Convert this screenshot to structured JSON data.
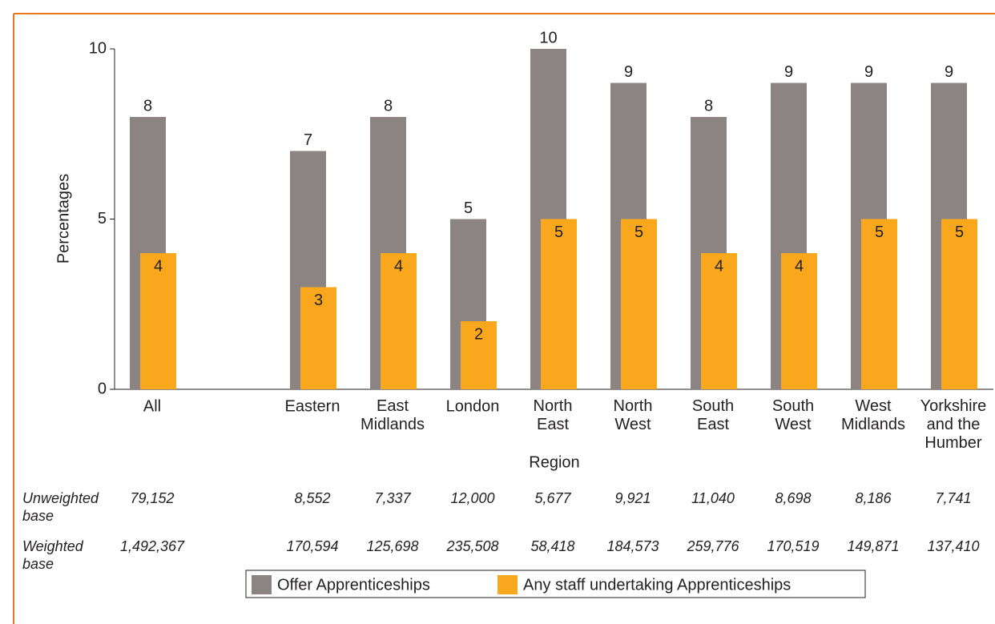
{
  "chart_data": {
    "type": "bar",
    "x_label": "Region",
    "y_label": "Percentages",
    "categories": [
      "All",
      null,
      "Eastern",
      "East\nMidlands",
      "London",
      "North\nEast",
      "North\nWest",
      "South\nEast",
      "South\nWest",
      "West\nMidlands",
      "Yorkshire\nand the\nHumber"
    ],
    "series": [
      {
        "name": "Offer Apprenticeships",
        "color": "#8c8482",
        "values": [
          8,
          null,
          7,
          8,
          5,
          10,
          9,
          8,
          9,
          9,
          9
        ]
      },
      {
        "name": "Any staff undertaking Apprenticeships",
        "color": "#f9a71c",
        "values": [
          4,
          null,
          3,
          4,
          2,
          5,
          5,
          4,
          4,
          5,
          5
        ]
      }
    ],
    "ylim": [
      0,
      10
    ],
    "yticks": [
      0,
      5,
      10
    ],
    "table": {
      "rows": [
        {
          "label": "Unweighted\nbase",
          "values": [
            "79,152",
            null,
            "8,552",
            "7,337",
            "12,000",
            "5,677",
            "9,921",
            "11,040",
            "8,698",
            "8,186",
            "7,741"
          ]
        },
        {
          "label": "Weighted\nbase",
          "values": [
            "1,492,367",
            null,
            "170,594",
            "125,698",
            "235,508",
            "58,418",
            "184,573",
            "259,776",
            "170,519",
            "149,871",
            "137,410"
          ]
        }
      ]
    }
  }
}
